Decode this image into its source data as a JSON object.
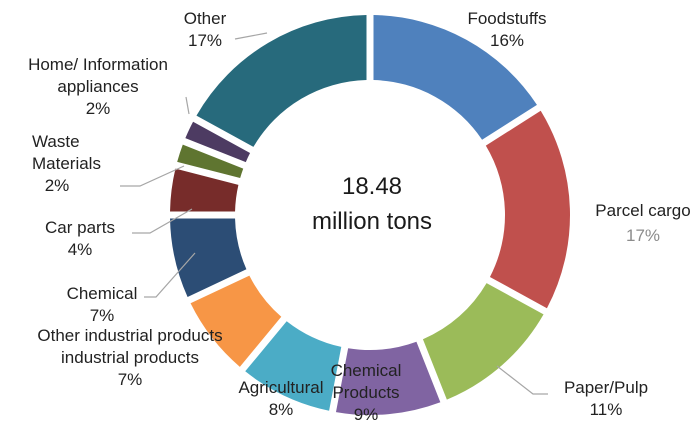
{
  "chart_data": {
    "type": "pie",
    "variant": "donut",
    "center_text": [
      "18.48",
      "million tons"
    ],
    "slices": [
      {
        "name": "Foodstuffs",
        "label_lines": [
          "Foodstuffs",
          "16%"
        ],
        "percent": 16,
        "color": "#4f81bd"
      },
      {
        "name": "Parcel cargo",
        "label_lines": [
          "Parcel cargo",
          "17%"
        ],
        "percent": 17,
        "color": "#c0504d"
      },
      {
        "name": "Paper/Pulp",
        "label_lines": [
          "Paper/Pulp",
          "11%"
        ],
        "percent": 11,
        "color": "#9bbb59"
      },
      {
        "name": "Chemical Products",
        "label_lines": [
          "Chemical",
          "Products",
          "9%"
        ],
        "percent": 9,
        "color": "#8064a2"
      },
      {
        "name": "Agricultural",
        "label_lines": [
          "Agricultural",
          "8%"
        ],
        "percent": 8,
        "color": "#4bacc6"
      },
      {
        "name": "Other industrial products",
        "label_lines": [
          "Other industrial products",
          "industrial products",
          "7%"
        ],
        "percent": 7,
        "color": "#f79646"
      },
      {
        "name": "Chemical",
        "label_lines": [
          "Chemical",
          "7%"
        ],
        "percent": 7,
        "color": "#2c4d75"
      },
      {
        "name": "Car parts",
        "label_lines": [
          "Car parts",
          "4%"
        ],
        "percent": 4,
        "color": "#772c2a"
      },
      {
        "name": "Waste Materials",
        "label_lines": [
          "Waste",
          "Materials",
          "2%"
        ],
        "percent": 2,
        "color": "#5f7530"
      },
      {
        "name": "Home/ Information appliances",
        "label_lines": [
          "Home/ Information",
          "appliances",
          "2%"
        ],
        "percent": 2,
        "color": "#4d3b62"
      },
      {
        "name": "Other",
        "label_lines": [
          "Other",
          "17%"
        ],
        "percent": 17,
        "color": "#276a7c"
      }
    ]
  }
}
